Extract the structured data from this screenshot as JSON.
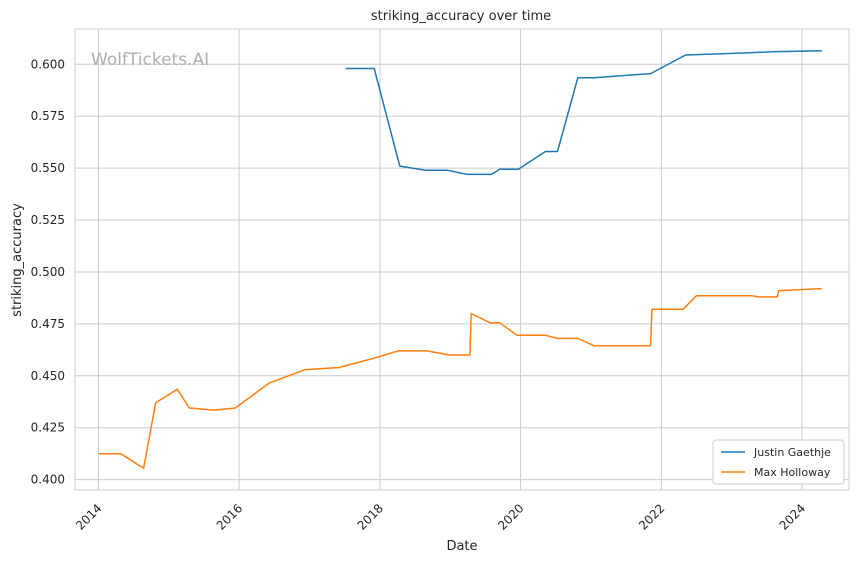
{
  "watermark": "WolfTickets.AI",
  "chart_data": {
    "type": "line",
    "title": "striking_accuracy over time",
    "xlabel": "Date",
    "ylabel": "striking_accuracy",
    "xlim": [
      "2013-09-01",
      "2024-09-01"
    ],
    "ylim": [
      0.395,
      0.617
    ],
    "x_ticks": [
      "2014",
      "2016",
      "2018",
      "2020",
      "2022",
      "2024"
    ],
    "y_ticks": [
      "0.400",
      "0.425",
      "0.450",
      "0.475",
      "0.500",
      "0.525",
      "0.550",
      "0.575",
      "0.600"
    ],
    "grid": true,
    "legend_position": "bottom-right",
    "colors": {
      "Justin Gaethje": "#1f77b4",
      "Max Holloway": "#ff7f0e"
    },
    "series": [
      {
        "name": "Justin Gaethje",
        "points": [
          [
            "2017-07-07",
            0.598
          ],
          [
            "2017-12-02",
            0.598
          ],
          [
            "2018-04-14",
            0.551
          ],
          [
            "2018-08-25",
            0.549
          ],
          [
            "2018-12-15",
            0.549
          ],
          [
            "2019-03-30",
            0.547
          ],
          [
            "2019-08-03",
            0.547
          ],
          [
            "2019-09-14",
            0.5495
          ],
          [
            "2019-12-21",
            0.5495
          ],
          [
            "2020-05-09",
            0.558
          ],
          [
            "2020-07-11",
            0.558
          ],
          [
            "2020-10-24",
            0.5935
          ],
          [
            "2021-01-15",
            0.5935
          ],
          [
            "2021-11-06",
            0.5955
          ],
          [
            "2022-05-07",
            0.6045
          ],
          [
            "2023-03-18",
            0.6055
          ],
          [
            "2023-07-29",
            0.606
          ],
          [
            "2024-04-13",
            0.6065
          ]
        ]
      },
      {
        "name": "Max Holloway",
        "points": [
          [
            "2014-01-04",
            0.4125
          ],
          [
            "2014-04-26",
            0.4125
          ],
          [
            "2014-08-23",
            0.4055
          ],
          [
            "2014-10-25",
            0.437
          ],
          [
            "2015-02-14",
            0.4435
          ],
          [
            "2015-04-18",
            0.4345
          ],
          [
            "2015-08-23",
            0.4335
          ],
          [
            "2015-12-12",
            0.4345
          ],
          [
            "2016-06-04",
            0.4465
          ],
          [
            "2016-12-10",
            0.453
          ],
          [
            "2017-06-03",
            0.454
          ],
          [
            "2017-12-02",
            0.4585
          ],
          [
            "2018-04-07",
            0.462
          ],
          [
            "2018-09-01",
            0.462
          ],
          [
            "2018-12-29",
            0.46
          ],
          [
            "2019-04-13",
            0.46
          ],
          [
            "2019-04-20",
            0.48
          ],
          [
            "2019-07-27",
            0.4755
          ],
          [
            "2019-09-14",
            0.4755
          ],
          [
            "2019-12-14",
            0.4695
          ],
          [
            "2020-05-09",
            0.4695
          ],
          [
            "2020-07-11",
            0.468
          ],
          [
            "2020-10-24",
            0.468
          ],
          [
            "2021-01-16",
            0.4645
          ],
          [
            "2021-11-06",
            0.4645
          ],
          [
            "2021-11-13",
            0.482
          ],
          [
            "2022-04-23",
            0.482
          ],
          [
            "2022-07-02",
            0.4885
          ],
          [
            "2023-04-15",
            0.4885
          ],
          [
            "2023-05-20",
            0.488
          ],
          [
            "2023-08-26",
            0.488
          ],
          [
            "2023-09-02",
            0.491
          ],
          [
            "2024-04-13",
            0.492
          ]
        ]
      }
    ]
  }
}
